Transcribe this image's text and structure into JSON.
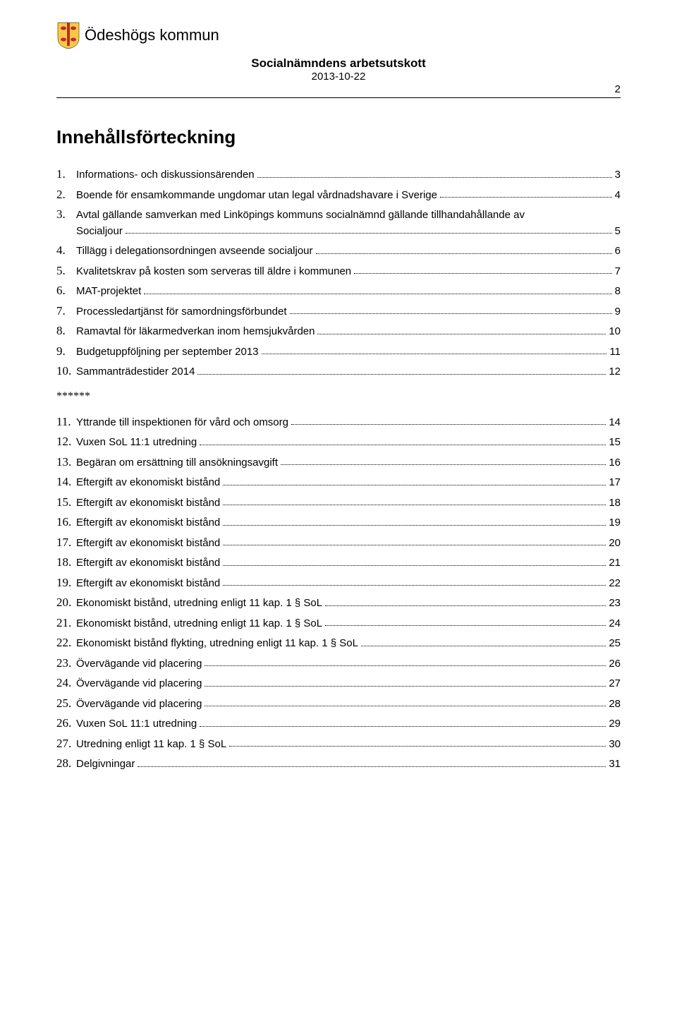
{
  "header": {
    "org_name": "Ödeshögs kommun",
    "title": "Socialnämndens arbetsutskott",
    "date": "2013-10-22",
    "page_number": "2"
  },
  "toc": {
    "title": "Innehållsförteckning",
    "separator": "******",
    "items_a": [
      {
        "n": "1.",
        "text": "Informations- och diskussionsärenden",
        "page": "3"
      },
      {
        "n": "2.",
        "text": "Boende för ensamkommande ungdomar utan legal vårdnadshavare i Sverige",
        "page": "4"
      },
      {
        "n": "3.",
        "text": "Avtal gällande samverkan med Linköpings kommuns socialnämnd gällande tillhandahållande av Socialjour",
        "page": "5",
        "wrap": true
      },
      {
        "n": "4.",
        "text": "Tillägg i delegationsordningen avseende socialjour",
        "page": "6"
      },
      {
        "n": "5.",
        "text": "Kvalitetskrav på kosten som serveras till äldre i kommunen",
        "page": "7"
      },
      {
        "n": "6.",
        "text": "MAT-projektet",
        "page": "8"
      },
      {
        "n": "7.",
        "text": "Processledartjänst för samordningsförbundet",
        "page": "9"
      },
      {
        "n": "8.",
        "text": "Ramavtal för läkarmedverkan inom hemsjukvården",
        "page": "10"
      },
      {
        "n": "9.",
        "text": "Budgetuppföljning per september 2013",
        "page": "11"
      },
      {
        "n": "10.",
        "text": "Sammanträdestider 2014",
        "page": "12"
      }
    ],
    "items_b": [
      {
        "n": "11.",
        "text": "Yttrande till inspektionen för vård och omsorg",
        "page": "14"
      },
      {
        "n": "12.",
        "text": "Vuxen SoL 11:1 utredning",
        "page": "15"
      },
      {
        "n": "13.",
        "text": "Begäran om ersättning till ansökningsavgift",
        "page": "16"
      },
      {
        "n": "14.",
        "text": "Eftergift av ekonomiskt bistånd",
        "page": "17"
      },
      {
        "n": "15.",
        "text": "Eftergift av ekonomiskt bistånd",
        "page": "18"
      },
      {
        "n": "16.",
        "text": "Eftergift av ekonomiskt bistånd",
        "page": "19"
      },
      {
        "n": "17.",
        "text": "Eftergift av ekonomiskt bistånd",
        "page": "20"
      },
      {
        "n": "18.",
        "text": "Eftergift av ekonomiskt bistånd",
        "page": "21"
      },
      {
        "n": "19.",
        "text": "Eftergift av ekonomiskt bistånd",
        "page": "22"
      },
      {
        "n": "20.",
        "text": "Ekonomiskt bistånd, utredning enligt 11 kap. 1 § SoL",
        "page": "23"
      },
      {
        "n": "21.",
        "text": "Ekonomiskt bistånd, utredning enligt 11 kap. 1 § SoL",
        "page": "24"
      },
      {
        "n": "22.",
        "text": "Ekonomiskt bistånd flykting, utredning enligt 11 kap. 1 § SoL",
        "page": "25"
      },
      {
        "n": "23.",
        "text": "Övervägande vid placering",
        "page": "26"
      },
      {
        "n": "24.",
        "text": "Övervägande vid placering",
        "page": "27"
      },
      {
        "n": "25.",
        "text": "Övervägande vid placering",
        "page": "28"
      },
      {
        "n": "26.",
        "text": "Vuxen SoL 11:1 utredning",
        "page": "29"
      },
      {
        "n": "27.",
        "text": "Utredning enligt 11 kap. 1 § SoL",
        "page": "30"
      },
      {
        "n": "28.",
        "text": "Delgivningar",
        "page": "31"
      }
    ]
  },
  "logo": {
    "shield_bg": "#f7c948",
    "vertical": "#c1272d",
    "ox_color": "#c1272d"
  }
}
